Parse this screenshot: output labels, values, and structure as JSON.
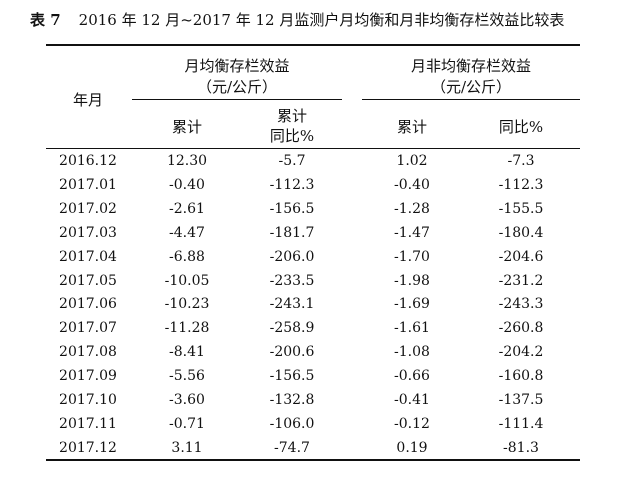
{
  "caption": {
    "number": "表 7",
    "title": "2016 年 12 月~2017 年 12 月监测户月均衡和月非均衡存栏效益比较表"
  },
  "headers": {
    "month": "年月",
    "group_a": "月均衡存栏效益",
    "group_a_unit": "（元/公斤）",
    "group_b": "月非均衡存栏效益",
    "group_b_unit": "（元/公斤）",
    "a_cum": "累计",
    "a_yoy_line1": "累计",
    "a_yoy_line2": "同比%",
    "b_cum": "累计",
    "b_yoy": "同比%"
  },
  "rows": [
    {
      "month": "2016.12",
      "a_cum": "12.30",
      "a_yoy": "-5.7",
      "b_cum": "1.02",
      "b_yoy": "-7.3"
    },
    {
      "month": "2017.01",
      "a_cum": "-0.40",
      "a_yoy": "-112.3",
      "b_cum": "-0.40",
      "b_yoy": "-112.3"
    },
    {
      "month": "2017.02",
      "a_cum": "-2.61",
      "a_yoy": "-156.5",
      "b_cum": "-1.28",
      "b_yoy": "-155.5"
    },
    {
      "month": "2017.03",
      "a_cum": "-4.47",
      "a_yoy": "-181.7",
      "b_cum": "-1.47",
      "b_yoy": "-180.4"
    },
    {
      "month": "2017.04",
      "a_cum": "-6.88",
      "a_yoy": "-206.0",
      "b_cum": "-1.70",
      "b_yoy": "-204.6"
    },
    {
      "month": "2017.05",
      "a_cum": "-10.05",
      "a_yoy": "-233.5",
      "b_cum": "-1.98",
      "b_yoy": "-231.2"
    },
    {
      "month": "2017.06",
      "a_cum": "-10.23",
      "a_yoy": "-243.1",
      "b_cum": "-1.69",
      "b_yoy": "-243.3"
    },
    {
      "month": "2017.07",
      "a_cum": "-11.28",
      "a_yoy": "-258.9",
      "b_cum": "-1.61",
      "b_yoy": "-260.8"
    },
    {
      "month": "2017.08",
      "a_cum": "-8.41",
      "a_yoy": "-200.6",
      "b_cum": "-1.08",
      "b_yoy": "-204.2"
    },
    {
      "month": "2017.09",
      "a_cum": "-5.56",
      "a_yoy": "-156.5",
      "b_cum": "-0.66",
      "b_yoy": "-160.8"
    },
    {
      "month": "2017.10",
      "a_cum": "-3.60",
      "a_yoy": "-132.8",
      "b_cum": "-0.41",
      "b_yoy": "-137.5"
    },
    {
      "month": "2017.11",
      "a_cum": "-0.71",
      "a_yoy": "-106.0",
      "b_cum": "-0.12",
      "b_yoy": "-111.4"
    },
    {
      "month": "2017.12",
      "a_cum": "3.11",
      "a_yoy": "-74.7",
      "b_cum": "0.19",
      "b_yoy": "-81.3"
    }
  ]
}
